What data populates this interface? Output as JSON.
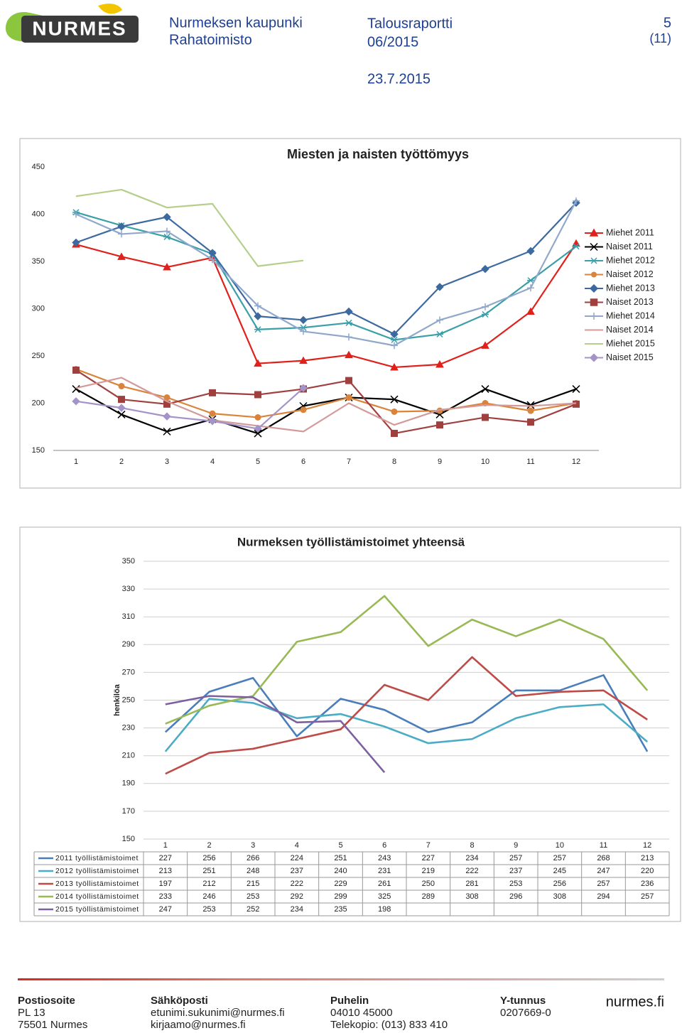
{
  "header": {
    "logo": "NURMES",
    "org": "Nurmeksen kaupunki",
    "dept": "Rahatoimisto",
    "report": "Talousraportti",
    "period": "06/2015",
    "page": "5",
    "pages": "(11)",
    "date": "23.7.2015"
  },
  "chart_data": [
    {
      "type": "line",
      "title": "Miesten ja naisten työttömyys",
      "categories": [
        "1",
        "2",
        "3",
        "4",
        "5",
        "6",
        "7",
        "8",
        "9",
        "10",
        "11",
        "12"
      ],
      "ylim": [
        150,
        450
      ],
      "yticks": [
        150,
        200,
        250,
        300,
        350,
        400,
        450
      ],
      "grid": false,
      "legend": "right",
      "series": [
        {
          "name": "Miehet 2011",
          "color": "#e0201b",
          "marker": "triangle",
          "values": [
            368,
            355,
            344,
            354,
            242,
            245,
            251,
            238,
            241,
            261,
            297,
            369
          ]
        },
        {
          "name": "Naiset 2011",
          "color": "#000000",
          "marker": "x",
          "values": [
            215,
            188,
            170,
            183,
            168,
            197,
            206,
            204,
            188,
            215,
            198,
            215
          ]
        },
        {
          "name": "Miehet 2012",
          "color": "#3a9fa8",
          "marker": "asterisk",
          "values": [
            402,
            388,
            376,
            358,
            278,
            280,
            285,
            267,
            273,
            294,
            330,
            366
          ]
        },
        {
          "name": "Naiset 2012",
          "color": "#d9843a",
          "marker": "circle",
          "values": [
            236,
            218,
            206,
            189,
            185,
            193,
            206,
            191,
            192,
            200,
            192,
            200
          ]
        },
        {
          "name": "Miehet 2013",
          "color": "#3c6aa0",
          "marker": "diamond",
          "values": [
            370,
            387,
            397,
            359,
            292,
            288,
            297,
            273,
            323,
            342,
            361,
            412
          ]
        },
        {
          "name": "Naiset 2013",
          "color": "#a0403e",
          "marker": "square",
          "values": [
            235,
            204,
            199,
            211,
            209,
            215,
            224,
            168,
            177,
            185,
            180,
            199
          ]
        },
        {
          "name": "Miehet 2014",
          "color": "#8fa8cc",
          "marker": "plus",
          "values": [
            400,
            379,
            382,
            352,
            303,
            276,
            270,
            261,
            288,
            302,
            322,
            414
          ]
        },
        {
          "name": "Naiset 2014",
          "color": "#d39a9a",
          "values": [
            216,
            227,
            202,
            182,
            176,
            170,
            200,
            177,
            193,
            198,
            197,
            200
          ]
        },
        {
          "name": "Miehet 2015",
          "color": "#b5cf8a",
          "values": [
            419,
            426,
            407,
            411,
            345,
            351,
            null,
            null,
            null,
            null,
            null,
            null
          ]
        },
        {
          "name": "Naiset 2015",
          "color": "#a393c8",
          "marker": "diamond",
          "values": [
            202,
            195,
            186,
            181,
            173,
            216,
            null,
            null,
            null,
            null,
            null,
            null
          ]
        }
      ]
    },
    {
      "type": "line",
      "title": "Nurmeksen työllistämistoimet yhteensä",
      "ylabel": "henkilöa",
      "categories": [
        "1",
        "2",
        "3",
        "4",
        "5",
        "6",
        "7",
        "8",
        "9",
        "10",
        "11",
        "12"
      ],
      "ylim": [
        150,
        350
      ],
      "yticks": [
        150,
        170,
        190,
        210,
        230,
        250,
        270,
        290,
        310,
        330,
        350
      ],
      "grid": true,
      "data_table": true,
      "series": [
        {
          "name": "2011 työllistämistoimet",
          "color": "#4a7ebb",
          "values": [
            227,
            256,
            266,
            224,
            251,
            243,
            227,
            234,
            257,
            257,
            268,
            213
          ]
        },
        {
          "name": "2012 työllistämistoimet",
          "color": "#4bacc6",
          "values": [
            213,
            251,
            248,
            237,
            240,
            231,
            219,
            222,
            237,
            245,
            247,
            220
          ]
        },
        {
          "name": "2013 työllistämistoimet",
          "color": "#be4b48",
          "values": [
            197,
            212,
            215,
            222,
            229,
            261,
            250,
            281,
            253,
            256,
            257,
            236
          ]
        },
        {
          "name": "2014 työllistämistoimet",
          "color": "#98b954",
          "values": [
            233,
            246,
            253,
            292,
            299,
            325,
            289,
            308,
            296,
            308,
            294,
            257
          ]
        },
        {
          "name": "2015 työllistämistoimet",
          "color": "#7d60a0",
          "values": [
            247,
            253,
            252,
            234,
            235,
            198,
            null,
            null,
            null,
            null,
            null,
            null
          ]
        }
      ]
    }
  ],
  "footer": {
    "columns": [
      {
        "heading": "Postiosoite",
        "lines": [
          "PL 13",
          "75501 Nurmes"
        ]
      },
      {
        "heading": "Sähköposti",
        "lines": [
          "etunimi.sukunimi@nurmes.fi",
          "kirjaamo@nurmes.fi"
        ]
      },
      {
        "heading": "Puhelin",
        "lines": [
          "04010 45000",
          "Telekopio: (013) 833 410"
        ]
      },
      {
        "heading": "Y-tunnus",
        "lines": [
          "0207669-0"
        ]
      }
    ],
    "site": "nurmes.fi"
  }
}
